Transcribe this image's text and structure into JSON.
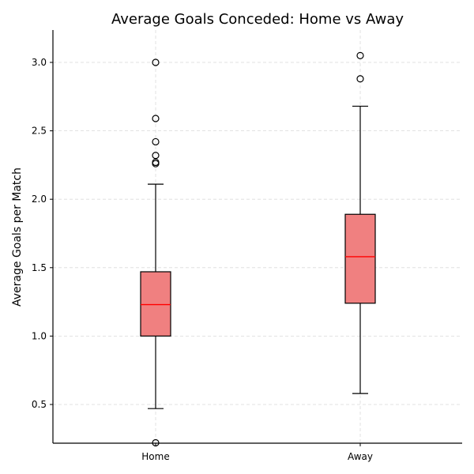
{
  "chart_data": {
    "type": "box",
    "title": "Average Goals Conceded: Home vs Away",
    "xlabel": "",
    "ylabel": "Average Goals per Match",
    "categories": [
      "Home",
      "Away"
    ],
    "ylim": [
      0.22,
      3.25
    ],
    "yticks": [
      0.5,
      1.0,
      1.5,
      2.0,
      2.5,
      3.0
    ],
    "ytick_labels": [
      "0.5",
      "1.0",
      "1.5",
      "2.0",
      "2.5",
      "3.0"
    ],
    "grid": true,
    "boxes": [
      {
        "name": "Home",
        "whisker_low": 0.47,
        "q1": 1.0,
        "median": 1.23,
        "q3": 1.47,
        "whisker_high": 2.11,
        "outliers": [
          0.22,
          2.26,
          2.27,
          2.32,
          2.42,
          2.59,
          3.0
        ]
      },
      {
        "name": "Away",
        "whisker_low": 0.58,
        "q1": 1.24,
        "median": 1.58,
        "q3": 1.89,
        "whisker_high": 2.68,
        "outliers": [
          2.88,
          3.05
        ]
      }
    ],
    "colors": {
      "box_fill": "#f08080",
      "median": "#ff0000",
      "line": "#000000",
      "grid": "#d9d9d9"
    }
  }
}
